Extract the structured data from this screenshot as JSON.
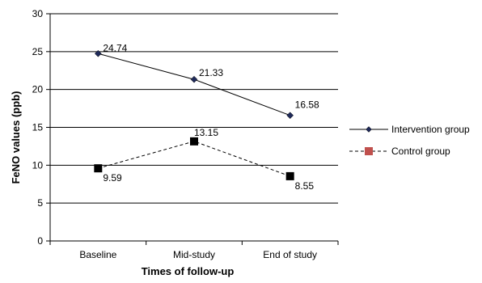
{
  "chart_data": {
    "type": "line",
    "categories": [
      "Baseline",
      "Mid-study",
      "End of study"
    ],
    "series": [
      {
        "name": "Intervention group",
        "values": [
          24.74,
          21.33,
          16.58
        ],
        "labels": [
          "24.74",
          "21.33",
          "16.58"
        ],
        "color": "#000000",
        "legend_marker_color": "#1f2a5a",
        "line_style": "solid",
        "marker": "diamond"
      },
      {
        "name": "Control group",
        "values": [
          9.59,
          13.15,
          8.55
        ],
        "labels": [
          "9.59",
          "13.15",
          "8.55"
        ],
        "color": "#000000",
        "legend_marker_color": "#c0504d",
        "line_style": "dashed",
        "marker": "square"
      }
    ],
    "xlabel": "Times of follow-up",
    "ylabel": "FeNO values (ppb)",
    "ylim": [
      0,
      30
    ],
    "yticks": [
      0,
      5,
      10,
      15,
      20,
      25,
      30
    ],
    "ytick_labels": [
      "0",
      "5",
      "10",
      "15",
      "20",
      "25",
      "30"
    ],
    "grid": true,
    "legend_position": "right"
  }
}
